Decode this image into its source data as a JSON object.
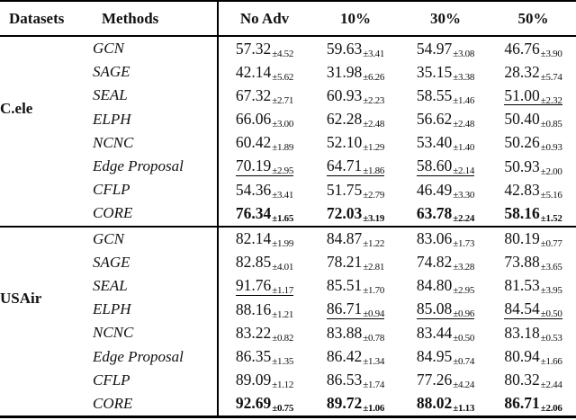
{
  "styles": {
    "background": "#ffffff",
    "text_color": "#111111",
    "rule_color": "#000000"
  },
  "table": {
    "headers": [
      "Datasets",
      "Methods",
      "No Adv",
      "10%",
      "30%",
      "50%"
    ],
    "groups": [
      {
        "dataset": "C.ele",
        "rows": [
          {
            "method": "GCN",
            "cells": [
              {
                "v": "57.32",
                "e": "±4.52"
              },
              {
                "v": "59.63",
                "e": "±3.41"
              },
              {
                "v": "54.97",
                "e": "±3.08"
              },
              {
                "v": "46.76",
                "e": "±3.90"
              }
            ]
          },
          {
            "method": "SAGE",
            "cells": [
              {
                "v": "42.14",
                "e": "±5.62"
              },
              {
                "v": "31.98",
                "e": "±6.26"
              },
              {
                "v": "35.15",
                "e": "±3.38"
              },
              {
                "v": "28.32",
                "e": "±5.74"
              }
            ]
          },
          {
            "method": "SEAL",
            "cells": [
              {
                "v": "67.32",
                "e": "±2.71"
              },
              {
                "v": "60.93",
                "e": "±2.23"
              },
              {
                "v": "58.55",
                "e": "±1.46"
              },
              {
                "v": "51.00",
                "e": "±2.32",
                "u": true
              }
            ]
          },
          {
            "method": "ELPH",
            "cells": [
              {
                "v": "66.06",
                "e": "±3.00"
              },
              {
                "v": "62.28",
                "e": "±2.48"
              },
              {
                "v": "56.62",
                "e": "±2.48"
              },
              {
                "v": "50.40",
                "e": "±0.85"
              }
            ]
          },
          {
            "method": "NCNC",
            "cells": [
              {
                "v": "60.42",
                "e": "±1.89"
              },
              {
                "v": "52.10",
                "e": "±1.29"
              },
              {
                "v": "53.40",
                "e": "±1.40"
              },
              {
                "v": "50.26",
                "e": "±0.93"
              }
            ]
          },
          {
            "method": "Edge Proposal",
            "cells": [
              {
                "v": "70.19",
                "e": "±2.95",
                "u": true
              },
              {
                "v": "64.71",
                "e": "±1.86",
                "u": true
              },
              {
                "v": "58.60",
                "e": "±2.14",
                "u": true
              },
              {
                "v": "50.93",
                "e": "±2.00"
              }
            ]
          },
          {
            "method": "CFLP",
            "cells": [
              {
                "v": "54.36",
                "e": "±3.41"
              },
              {
                "v": "51.75",
                "e": "±2.79"
              },
              {
                "v": "46.49",
                "e": "±3.30"
              },
              {
                "v": "42.83",
                "e": "±5.16"
              }
            ]
          },
          {
            "method": "CORE",
            "cells": [
              {
                "v": "76.34",
                "e": "±1.65",
                "b": true
              },
              {
                "v": "72.03",
                "e": "±3.19",
                "b": true
              },
              {
                "v": "63.78",
                "e": "±2.24",
                "b": true
              },
              {
                "v": "58.16",
                "e": "±1.52",
                "b": true
              }
            ]
          }
        ]
      },
      {
        "dataset": "USAir",
        "rows": [
          {
            "method": "GCN",
            "cells": [
              {
                "v": "82.14",
                "e": "±1.99"
              },
              {
                "v": "84.87",
                "e": "±1.22"
              },
              {
                "v": "83.06",
                "e": "±1.73"
              },
              {
                "v": "80.19",
                "e": "±0.77"
              }
            ]
          },
          {
            "method": "SAGE",
            "cells": [
              {
                "v": "82.85",
                "e": "±4.01"
              },
              {
                "v": "78.21",
                "e": "±2.81"
              },
              {
                "v": "74.82",
                "e": "±3.28"
              },
              {
                "v": "73.88",
                "e": "±3.65"
              }
            ]
          },
          {
            "method": "SEAL",
            "cells": [
              {
                "v": "91.76",
                "e": "±1.17",
                "u": true
              },
              {
                "v": "85.51",
                "e": "±1.70"
              },
              {
                "v": "84.80",
                "e": "±2.95"
              },
              {
                "v": "81.53",
                "e": "±3.95"
              }
            ]
          },
          {
            "method": "ELPH",
            "cells": [
              {
                "v": "88.16",
                "e": "±1.21"
              },
              {
                "v": "86.71",
                "e": "±0.94",
                "u": true
              },
              {
                "v": "85.08",
                "e": "±0.96",
                "u": true
              },
              {
                "v": "84.54",
                "e": "±0.50",
                "u": true
              }
            ]
          },
          {
            "method": "NCNC",
            "cells": [
              {
                "v": "83.22",
                "e": "±0.82"
              },
              {
                "v": "83.88",
                "e": "±0.78"
              },
              {
                "v": "83.44",
                "e": "±0.50"
              },
              {
                "v": "83.18",
                "e": "±0.53"
              }
            ]
          },
          {
            "method": "Edge Proposal",
            "cells": [
              {
                "v": "86.35",
                "e": "±1.35"
              },
              {
                "v": "86.42",
                "e": "±1.34"
              },
              {
                "v": "84.95",
                "e": "±0.74"
              },
              {
                "v": "80.94",
                "e": "±1.66"
              }
            ]
          },
          {
            "method": "CFLP",
            "cells": [
              {
                "v": "89.09",
                "e": "±1.12"
              },
              {
                "v": "86.53",
                "e": "±1.74"
              },
              {
                "v": "77.26",
                "e": "±4.24"
              },
              {
                "v": "80.32",
                "e": "±2.44"
              }
            ]
          },
          {
            "method": "CORE",
            "cells": [
              {
                "v": "92.69",
                "e": "±0.75",
                "b": true
              },
              {
                "v": "89.72",
                "e": "±1.06",
                "b": true
              },
              {
                "v": "88.02",
                "e": "±1.13",
                "b": true
              },
              {
                "v": "86.71",
                "e": "±2.06",
                "b": true
              }
            ]
          }
        ]
      }
    ]
  }
}
